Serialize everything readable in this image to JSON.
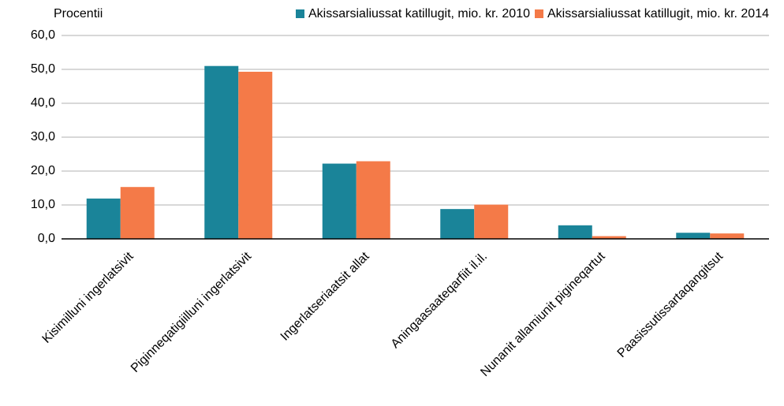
{
  "chart_data": {
    "type": "bar",
    "y_label": "Procentii",
    "categories": [
      "Kisimilluni ingerlatsivit",
      "Piginneqatigiilluni ingerlatsivit",
      "Ingerlatseriaatsit allat",
      "Aningaasaateqarfiit il.il.",
      "Nunanit allamiunit pigineqartut",
      "Paasissutissartaqangitsut"
    ],
    "series": [
      {
        "name": "Akissarsialiussat katillugit, mio. kr. 2010",
        "color": "#1a8499",
        "values": [
          11.9,
          51.0,
          22.2,
          8.8,
          4.0,
          1.8
        ]
      },
      {
        "name": "Akissarsialiussat katillugit, mio. kr. 2014",
        "color": "#f47a48",
        "values": [
          15.3,
          49.3,
          22.9,
          10.1,
          0.8,
          1.6
        ]
      }
    ],
    "ylim": [
      0,
      60
    ],
    "yticks": [
      {
        "value": 0,
        "label": "0,0"
      },
      {
        "value": 10,
        "label": "10,0"
      },
      {
        "value": 20,
        "label": "20,0"
      },
      {
        "value": 30,
        "label": "30,0"
      },
      {
        "value": 40,
        "label": "40,0"
      },
      {
        "value": 50,
        "label": "50,0"
      },
      {
        "value": 60,
        "label": "60,0"
      }
    ],
    "grid": true
  }
}
